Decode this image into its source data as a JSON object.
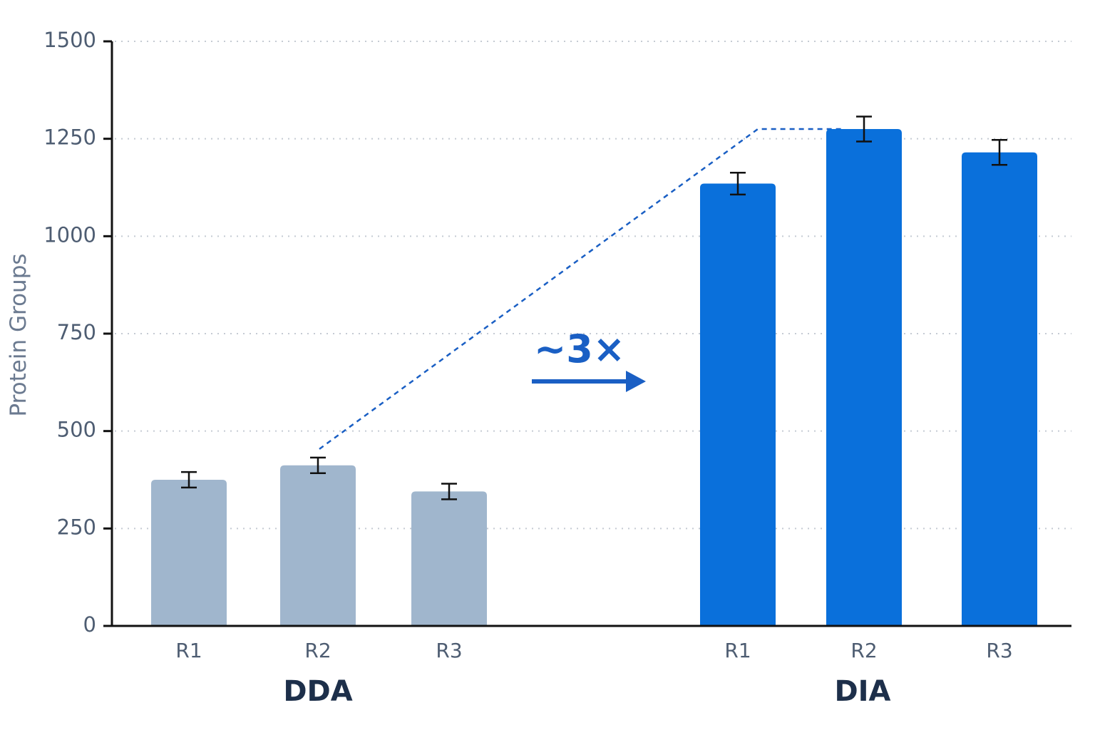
{
  "chart_data": {
    "type": "bar",
    "title": "",
    "xlabel": "",
    "ylabel": "Protein Groups",
    "ylim": [
      0,
      1500
    ],
    "yticks": [
      0,
      250,
      500,
      750,
      1000,
      1250,
      1500
    ],
    "grid": true,
    "groups": [
      {
        "name": "DDA",
        "color": "#a0b6cd",
        "bars": [
          {
            "label": "R1",
            "value": 375,
            "error": 20
          },
          {
            "label": "R2",
            "value": 412,
            "error": 20
          },
          {
            "label": "R3",
            "value": 345,
            "error": 20
          }
        ]
      },
      {
        "name": "DIA",
        "color": "#0a70db",
        "bars": [
          {
            "label": "R1",
            "value": 1135,
            "error": 28
          },
          {
            "label": "R2",
            "value": 1275,
            "error": 32
          },
          {
            "label": "R3",
            "value": 1215,
            "error": 32
          }
        ]
      }
    ],
    "annotation": {
      "text": "~3×",
      "color": "#1a5fc4"
    }
  }
}
